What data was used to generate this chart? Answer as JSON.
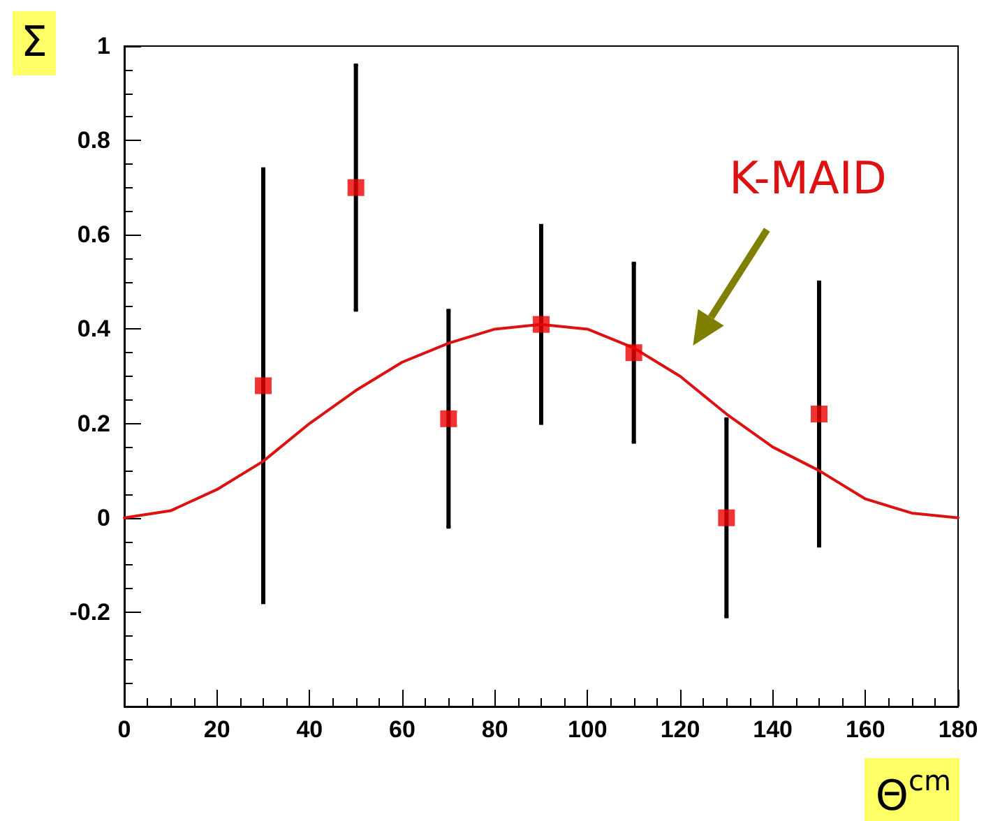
{
  "chart_data": {
    "type": "scatter",
    "xlabel": "Θ$^{cm}$",
    "ylabel": "Σ",
    "xlim": [
      0,
      180
    ],
    "xticks": [
      0,
      20,
      40,
      60,
      80,
      100,
      120,
      140,
      160,
      180
    ],
    "ylim": [
      -0.4,
      1
    ],
    "yticks": [
      -0.2,
      0,
      0.2,
      0.4,
      0.6,
      0.8,
      1
    ],
    "grid": false,
    "legend": false,
    "marker": "square",
    "series": [
      {
        "color": "#ee0000",
        "x": [
          30,
          50,
          70,
          90,
          110,
          130,
          150
        ],
        "values": [
          0.28,
          0.7,
          0.21,
          0.41,
          0.35,
          0.0,
          0.22
        ],
        "errors": [
          0.46,
          0.26,
          0.23,
          0.21,
          0.19,
          0.21,
          0.28
        ]
      },
      {
        "type": "line",
        "name": "K-MAID",
        "color": "#dd1111",
        "marker": "none",
        "line_style": "solid",
        "x": [
          0,
          10,
          20,
          30,
          40,
          50,
          60,
          70,
          80,
          90,
          100,
          110,
          120,
          130,
          140,
          150,
          160,
          170,
          180
        ],
        "values": [
          0,
          0.015,
          0.06,
          0.12,
          0.2,
          0.27,
          0.33,
          0.37,
          0.4,
          0.41,
          0.4,
          0.36,
          0.3,
          0.22,
          0.15,
          0.1,
          0.04,
          0.01,
          0
        ]
      }
    ]
  }
}
